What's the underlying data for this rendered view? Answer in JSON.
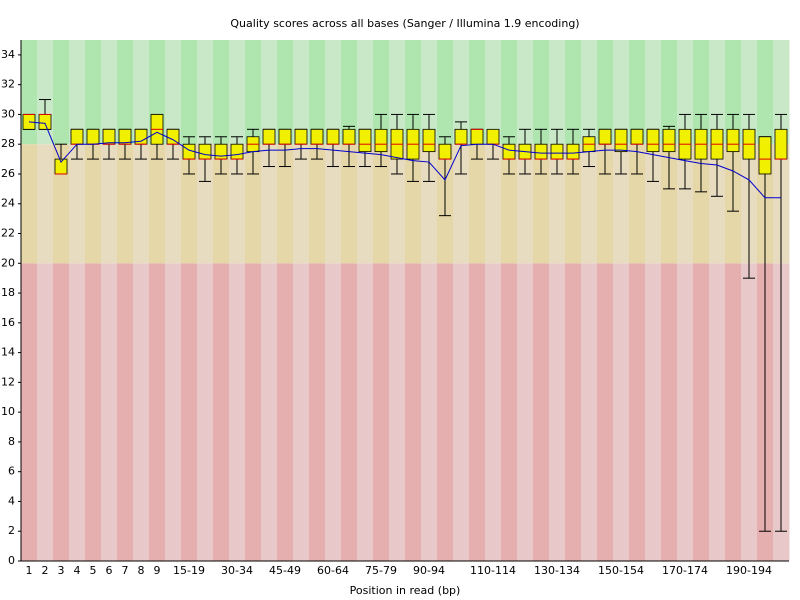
{
  "chart_data": {
    "type": "box",
    "title": "Quality scores across all bases (Sanger / Illumina 1.9 encoding)",
    "x_label": "Position in read (bp)",
    "categories": [
      "1",
      "2",
      "3",
      "4",
      "5",
      "6",
      "7",
      "8",
      "9",
      null,
      "15-19",
      null,
      null,
      "30-34",
      null,
      null,
      "45-49",
      null,
      null,
      "60-64",
      null,
      null,
      "75-79",
      null,
      null,
      "90-94",
      null,
      null,
      null,
      "110-114",
      null,
      null,
      null,
      "130-134",
      null,
      null,
      null,
      "150-154",
      null,
      null,
      null,
      "170-174",
      null,
      null,
      null,
      "190-194",
      null,
      null
    ],
    "stats": {
      "mean": [
        29.5,
        29.4,
        26.8,
        28.0,
        28.0,
        28.1,
        28.1,
        28.2,
        28.8,
        28.3,
        27.6,
        27.3,
        27.2,
        27.3,
        27.5,
        27.6,
        27.6,
        27.7,
        27.7,
        27.6,
        27.5,
        27.4,
        27.3,
        27.1,
        26.9,
        26.8,
        25.6,
        27.9,
        28.0,
        28.0,
        27.6,
        27.5,
        27.4,
        27.4,
        27.4,
        27.5,
        27.6,
        27.6,
        27.5,
        27.3,
        27.1,
        26.9,
        26.7,
        26.6,
        26.2,
        25.6,
        24.4,
        24.4
      ],
      "median": [
        30,
        30,
        26,
        28,
        28,
        28,
        28,
        28,
        29,
        28,
        27,
        27,
        27,
        27,
        28,
        28,
        28,
        28,
        28,
        28,
        28,
        28,
        28,
        28,
        28,
        28,
        27,
        28,
        29,
        28,
        27,
        27,
        27,
        27,
        27,
        28,
        28,
        28,
        28,
        28,
        28,
        28,
        28,
        28,
        28,
        28,
        27,
        27
      ],
      "q1": [
        29,
        29,
        26,
        28,
        28,
        28,
        28,
        28,
        28,
        28,
        27,
        27,
        27,
        27,
        27.5,
        28,
        28,
        28,
        28,
        28,
        28,
        27.5,
        27.5,
        27,
        27,
        27.5,
        27,
        28,
        28,
        28,
        27,
        27,
        27,
        27,
        27,
        27.5,
        28,
        27.5,
        28,
        27.5,
        27.5,
        27,
        27,
        27,
        27.5,
        27,
        26,
        27
      ],
      "q3": [
        30,
        30,
        27,
        29,
        29,
        29,
        29,
        29,
        30,
        29,
        28,
        28,
        28,
        28,
        28.5,
        29,
        29,
        29,
        29,
        29,
        29,
        29,
        29,
        29,
        29,
        29,
        28,
        29,
        29,
        29,
        28,
        28,
        28,
        28,
        28,
        28.5,
        29,
        29,
        29,
        29,
        29,
        29,
        29,
        29,
        29,
        29,
        28.5,
        29
      ],
      "whisker_low": [
        29,
        29,
        26,
        27,
        27,
        27,
        27,
        27,
        27,
        27,
        26,
        25.5,
        26,
        26,
        26,
        26.5,
        26.5,
        27,
        27,
        26.5,
        26.5,
        26.5,
        26.5,
        26,
        25.5,
        25.5,
        23.2,
        26,
        27,
        27,
        26,
        26,
        26,
        26,
        26,
        26.5,
        26,
        26,
        26,
        25.5,
        25,
        25,
        24.8,
        24.5,
        23.5,
        19,
        2,
        2
      ],
      "whisker_high": [
        30,
        31,
        28,
        29,
        29,
        29,
        29,
        29,
        30,
        29,
        28.5,
        28.5,
        28.5,
        28.5,
        29,
        29,
        29,
        29,
        29,
        29,
        29.2,
        29,
        30,
        30,
        30,
        30,
        28.5,
        29.5,
        29,
        28.5,
        28.5,
        29,
        29,
        29,
        29,
        29,
        29,
        29,
        29,
        29,
        29.2,
        30,
        30,
        30,
        30,
        30,
        28.5,
        30
      ]
    },
    "box_color": "#f0f000",
    "median_color": "#e00000",
    "mean_color": "#0000cc",
    "zones": [
      {
        "from": 0,
        "to": 20,
        "colors": [
          "#e6afaf",
          "#e8c8c8"
        ]
      },
      {
        "from": 20,
        "to": 28,
        "colors": [
          "#e6d7a8",
          "#e8dcc0"
        ]
      },
      {
        "from": 28,
        "to": 35,
        "colors": [
          "#afe6af",
          "#c8e8c8"
        ]
      }
    ],
    "ylim": [
      0,
      35
    ],
    "yticks": [
      0,
      2,
      4,
      6,
      8,
      10,
      12,
      14,
      16,
      18,
      20,
      22,
      24,
      26,
      28,
      30,
      32,
      34
    ]
  }
}
